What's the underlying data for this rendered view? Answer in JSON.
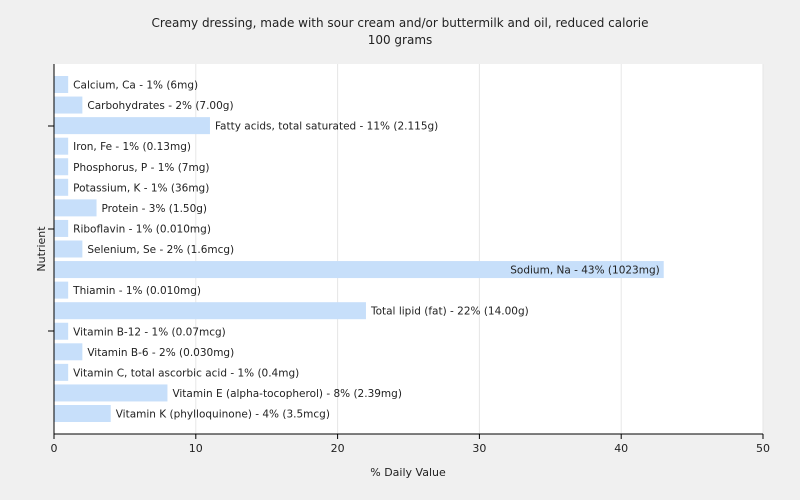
{
  "chart_data": {
    "type": "bar",
    "orientation": "horizontal",
    "title": "Creamy dressing, made with sour cream and/or buttermilk and oil, reduced calorie",
    "subtitle": "100 grams",
    "xlabel": "% Daily Value",
    "ylabel": "Nutrient",
    "xlim": [
      0,
      50
    ],
    "xticks": [
      0,
      10,
      20,
      30,
      40,
      50
    ],
    "grid": true,
    "bar_color": "#c7dffa",
    "background_color": "#f0f0f0",
    "plot_background_color": "#ffffff",
    "categories": [
      "Calcium, Ca",
      "Carbohydrates",
      "Fatty acids, total saturated",
      "Iron, Fe",
      "Phosphorus, P",
      "Potassium, K",
      "Protein",
      "Riboflavin",
      "Selenium, Se",
      "Sodium, Na",
      "Thiamin",
      "Total lipid (fat)",
      "Vitamin B-12",
      "Vitamin B-6",
      "Vitamin C, total ascorbic acid",
      "Vitamin E (alpha-tocopherol)",
      "Vitamin K (phylloquinone)"
    ],
    "values": [
      1,
      2,
      11,
      1,
      1,
      1,
      3,
      1,
      2,
      43,
      1,
      22,
      1,
      2,
      1,
      8,
      4
    ],
    "labels": [
      "Calcium, Ca - 1% (6mg)",
      "Carbohydrates - 2% (7.00g)",
      "Fatty acids, total saturated - 11% (2.115g)",
      "Iron, Fe - 1% (0.13mg)",
      "Phosphorus, P - 1% (7mg)",
      "Potassium, K - 1% (36mg)",
      "Protein - 3% (1.50g)",
      "Riboflavin - 1% (0.010mg)",
      "Selenium, Se - 2% (1.6mcg)",
      "Sodium, Na - 43% (1023mg)",
      "Thiamin - 1% (0.010mg)",
      "Total lipid (fat) - 22% (14.00g)",
      "Vitamin B-12 - 1% (0.07mcg)",
      "Vitamin B-6 - 2% (0.030mg)",
      "Vitamin C, total ascorbic acid - 1% (0.4mg)",
      "Vitamin E (alpha-tocopherol) - 8% (2.39mg)",
      "Vitamin K (phylloquinone) - 4% (3.5mcg)"
    ]
  }
}
